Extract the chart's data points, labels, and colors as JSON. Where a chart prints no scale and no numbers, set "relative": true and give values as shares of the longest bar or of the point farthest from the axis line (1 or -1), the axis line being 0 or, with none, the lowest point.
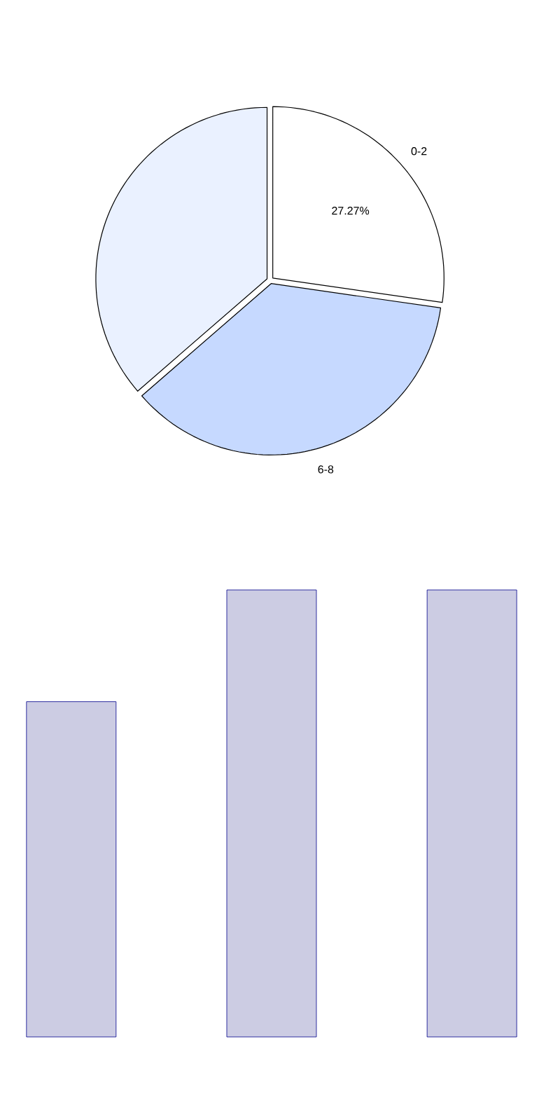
{
  "chart_data": [
    {
      "type": "pie",
      "categories": [
        "0-2",
        "6-8",
        null
      ],
      "values": [
        27.27,
        36.36,
        36.37
      ],
      "colors": [
        "#ffffff",
        "#c6d9ff",
        "#eaf1ff"
      ],
      "value_labels": [
        "27.27%",
        null,
        null
      ]
    },
    {
      "type": "bar",
      "categories": [
        null,
        null,
        null
      ],
      "values": [
        0.75,
        1,
        1
      ],
      "color": "#ccccE3",
      "relative": true
    }
  ]
}
